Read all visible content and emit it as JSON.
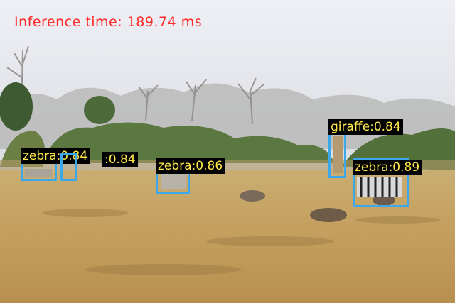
{
  "overlay": {
    "inference_text": "Inference time: 189.74 ms",
    "text_color": "#ff2a2a"
  },
  "detections": [
    {
      "label": "zebra:0.84",
      "class": "zebra",
      "score": 0.84
    },
    {
      "label": ":0.84",
      "class": "zebra",
      "score": 0.84
    },
    {
      "label": "zebra:0.86",
      "class": "zebra",
      "score": 0.86
    },
    {
      "label": "giraffe:0.84",
      "class": "giraffe",
      "score": 0.84
    },
    {
      "label": "zebra:0.89",
      "class": "zebra",
      "score": 0.89
    }
  ],
  "colors": {
    "box": "#3aa8ea",
    "label_bg": "#000000",
    "label_text": "#ffe94a"
  }
}
